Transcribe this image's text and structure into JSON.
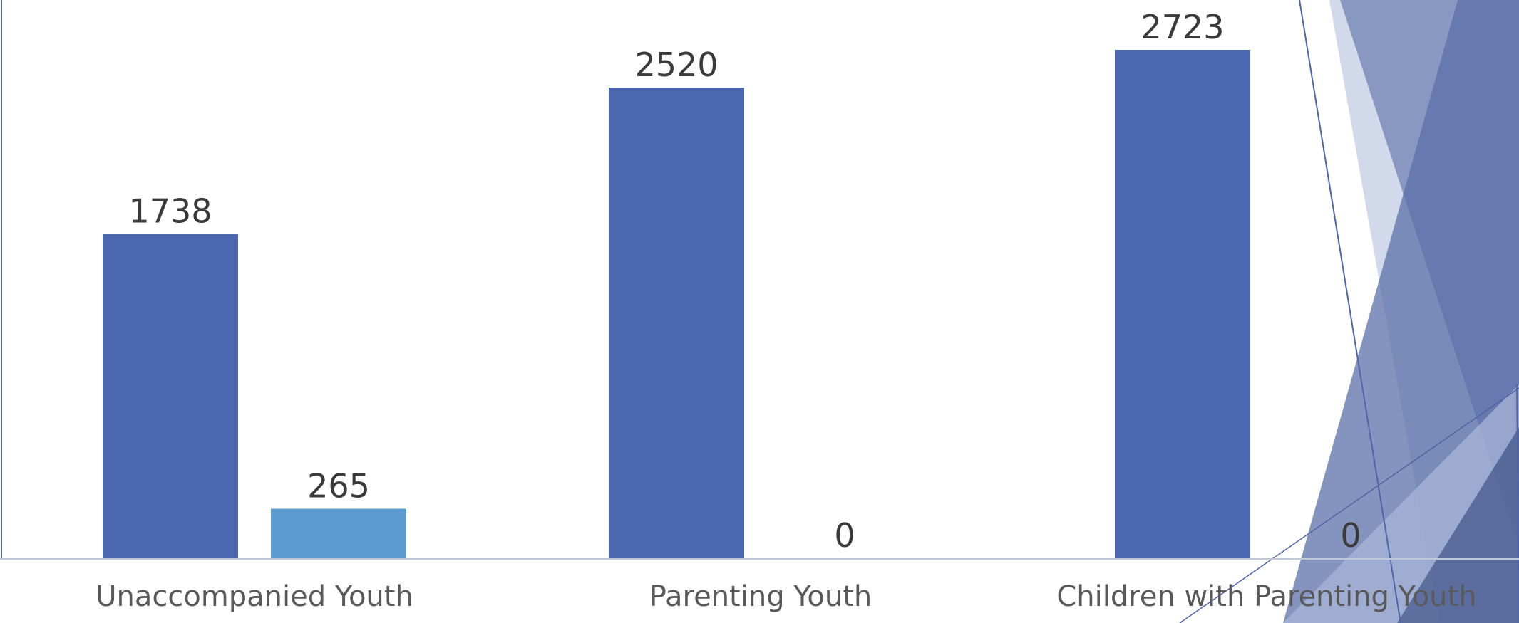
{
  "chart_data": {
    "type": "bar",
    "categories": [
      "Unaccompanied Youth",
      "Parenting Youth",
      "Children with Parenting Youth"
    ],
    "series": [
      {
        "values": [
          1738,
          2520,
          2723
        ],
        "color": "#4a67af"
      },
      {
        "values": [
          265,
          0,
          0
        ],
        "color": "#5c9bd0"
      }
    ],
    "ylim": [
      0,
      3000
    ],
    "grid": false,
    "legend": "none"
  },
  "colors": {
    "primary_bar": "#4a67af",
    "secondary_bar": "#5c9bd0",
    "axis": "#bfc7d8",
    "decoration": "#4f65a8"
  }
}
